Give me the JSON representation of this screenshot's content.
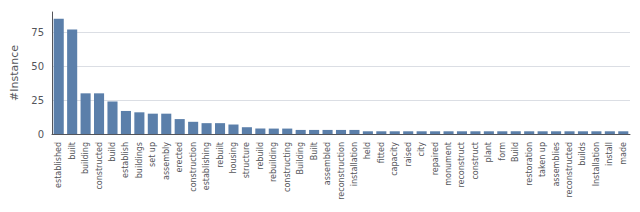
{
  "chart_data": {
    "type": "bar",
    "ylabel": "#Instance",
    "categories": [
      "established",
      "built",
      "building",
      "constructed",
      "build",
      "establish",
      "buildings",
      "set up",
      "assembly",
      "erected",
      "construction",
      "establishing",
      "rebuilt",
      "housing",
      "structure",
      "rebuild",
      "rebuilding",
      "constructing",
      "Building",
      "Built",
      "assembled",
      "reconstruction",
      "installation",
      "held",
      "fitted",
      "capacity",
      "raised",
      "city",
      "repaired",
      "monument",
      "reconstruct",
      "construct",
      "plant",
      "form",
      "Build",
      "restoration",
      "taken up",
      "assemblies",
      "reconstructed",
      "builds",
      "Installation",
      "install",
      "made"
    ],
    "values": [
      85,
      77,
      30,
      30,
      24,
      17,
      16,
      15,
      15,
      11,
      9,
      8,
      8,
      7,
      5,
      4,
      4,
      4,
      3,
      3,
      3,
      3,
      3,
      2,
      2,
      2,
      2,
      2,
      2,
      2,
      2,
      2,
      2,
      2,
      2,
      2,
      2,
      2,
      2,
      2,
      2,
      2,
      2
    ],
    "color": "#5b7faa",
    "ylim": [
      0,
      90
    ],
    "yticks": [
      0,
      25,
      50,
      75
    ],
    "grid": true
  }
}
